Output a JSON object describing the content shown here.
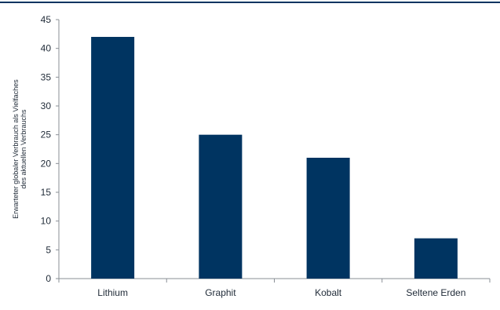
{
  "colors": {
    "bar": "#003461",
    "axis": "#8a8f96",
    "top_rule": "#003461",
    "text": "#1f2a37"
  },
  "chart_data": {
    "type": "bar",
    "title": "",
    "xlabel": "",
    "ylabel_lines": [
      "Erwarteter globaler Verbrauch als Vielfaches",
      "des aktuellen Verbrauchs"
    ],
    "categories": [
      "Lithium",
      "Graphit",
      "Kobalt",
      "Seltene Erden"
    ],
    "values": [
      42,
      25,
      21,
      7
    ],
    "ylim": [
      0,
      45
    ],
    "yticks": [
      0,
      5,
      10,
      15,
      20,
      25,
      30,
      35,
      40,
      45
    ],
    "grid": false,
    "legend": "none"
  }
}
